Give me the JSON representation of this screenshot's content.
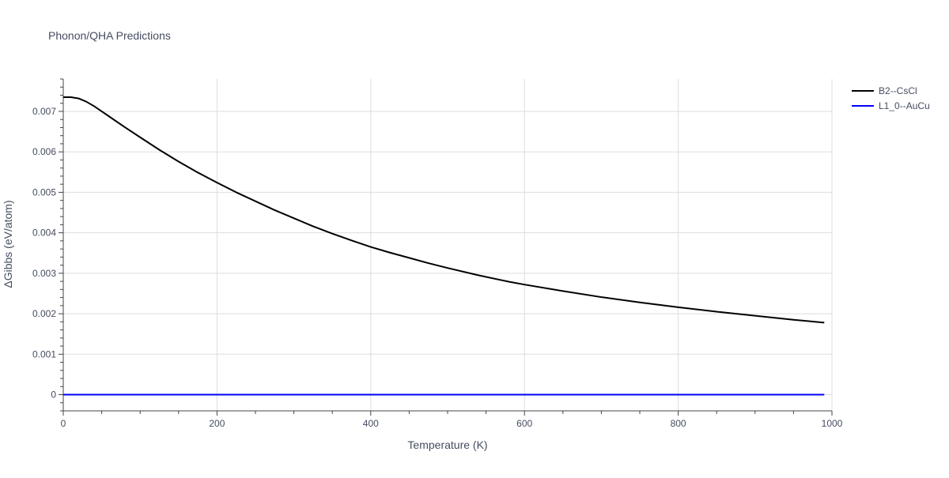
{
  "chart_data": {
    "type": "line",
    "title": "Phonon/QHA Predictions",
    "xlabel": "Temperature (K)",
    "ylabel": "ΔGibbs (eV/atom)",
    "xlim": [
      0,
      1000
    ],
    "ylim": [
      -0.0004,
      0.0078
    ],
    "x_ticks": [
      0,
      200,
      400,
      600,
      800,
      1000
    ],
    "x_tick_labels": [
      "0",
      "200",
      "400",
      "600",
      "800",
      "1000"
    ],
    "y_ticks": [
      0,
      0.001,
      0.002,
      0.003,
      0.004,
      0.005,
      0.006,
      0.007
    ],
    "y_tick_labels": [
      "0",
      "0.001",
      "0.002",
      "0.003",
      "0.004",
      "0.005",
      "0.006",
      "0.007"
    ],
    "grid": true,
    "legend_position": "top-right",
    "series": [
      {
        "name": "B2--CsCl",
        "color": "#000000",
        "x": [
          0,
          10,
          20,
          30,
          40,
          50,
          60,
          80,
          100,
          125,
          150,
          175,
          200,
          225,
          250,
          275,
          300,
          325,
          350,
          375,
          400,
          425,
          450,
          475,
          500,
          540,
          580,
          600,
          650,
          700,
          750,
          800,
          850,
          900,
          950,
          990
        ],
        "y": [
          0.00735,
          0.00735,
          0.00732,
          0.00724,
          0.00713,
          0.007,
          0.00687,
          0.00661,
          0.00636,
          0.00605,
          0.00576,
          0.00549,
          0.00524,
          0.005,
          0.00478,
          0.00456,
          0.00436,
          0.00416,
          0.00398,
          0.00381,
          0.00365,
          0.00351,
          0.00338,
          0.00325,
          0.00313,
          0.00295,
          0.00279,
          0.00272,
          0.00256,
          0.00241,
          0.00228,
          0.00216,
          0.00205,
          0.00195,
          0.00185,
          0.00178
        ]
      },
      {
        "name": "L1_0--AuCu",
        "color": "#0000ff",
        "x": [
          0,
          990
        ],
        "y": [
          0,
          0
        ]
      }
    ]
  }
}
